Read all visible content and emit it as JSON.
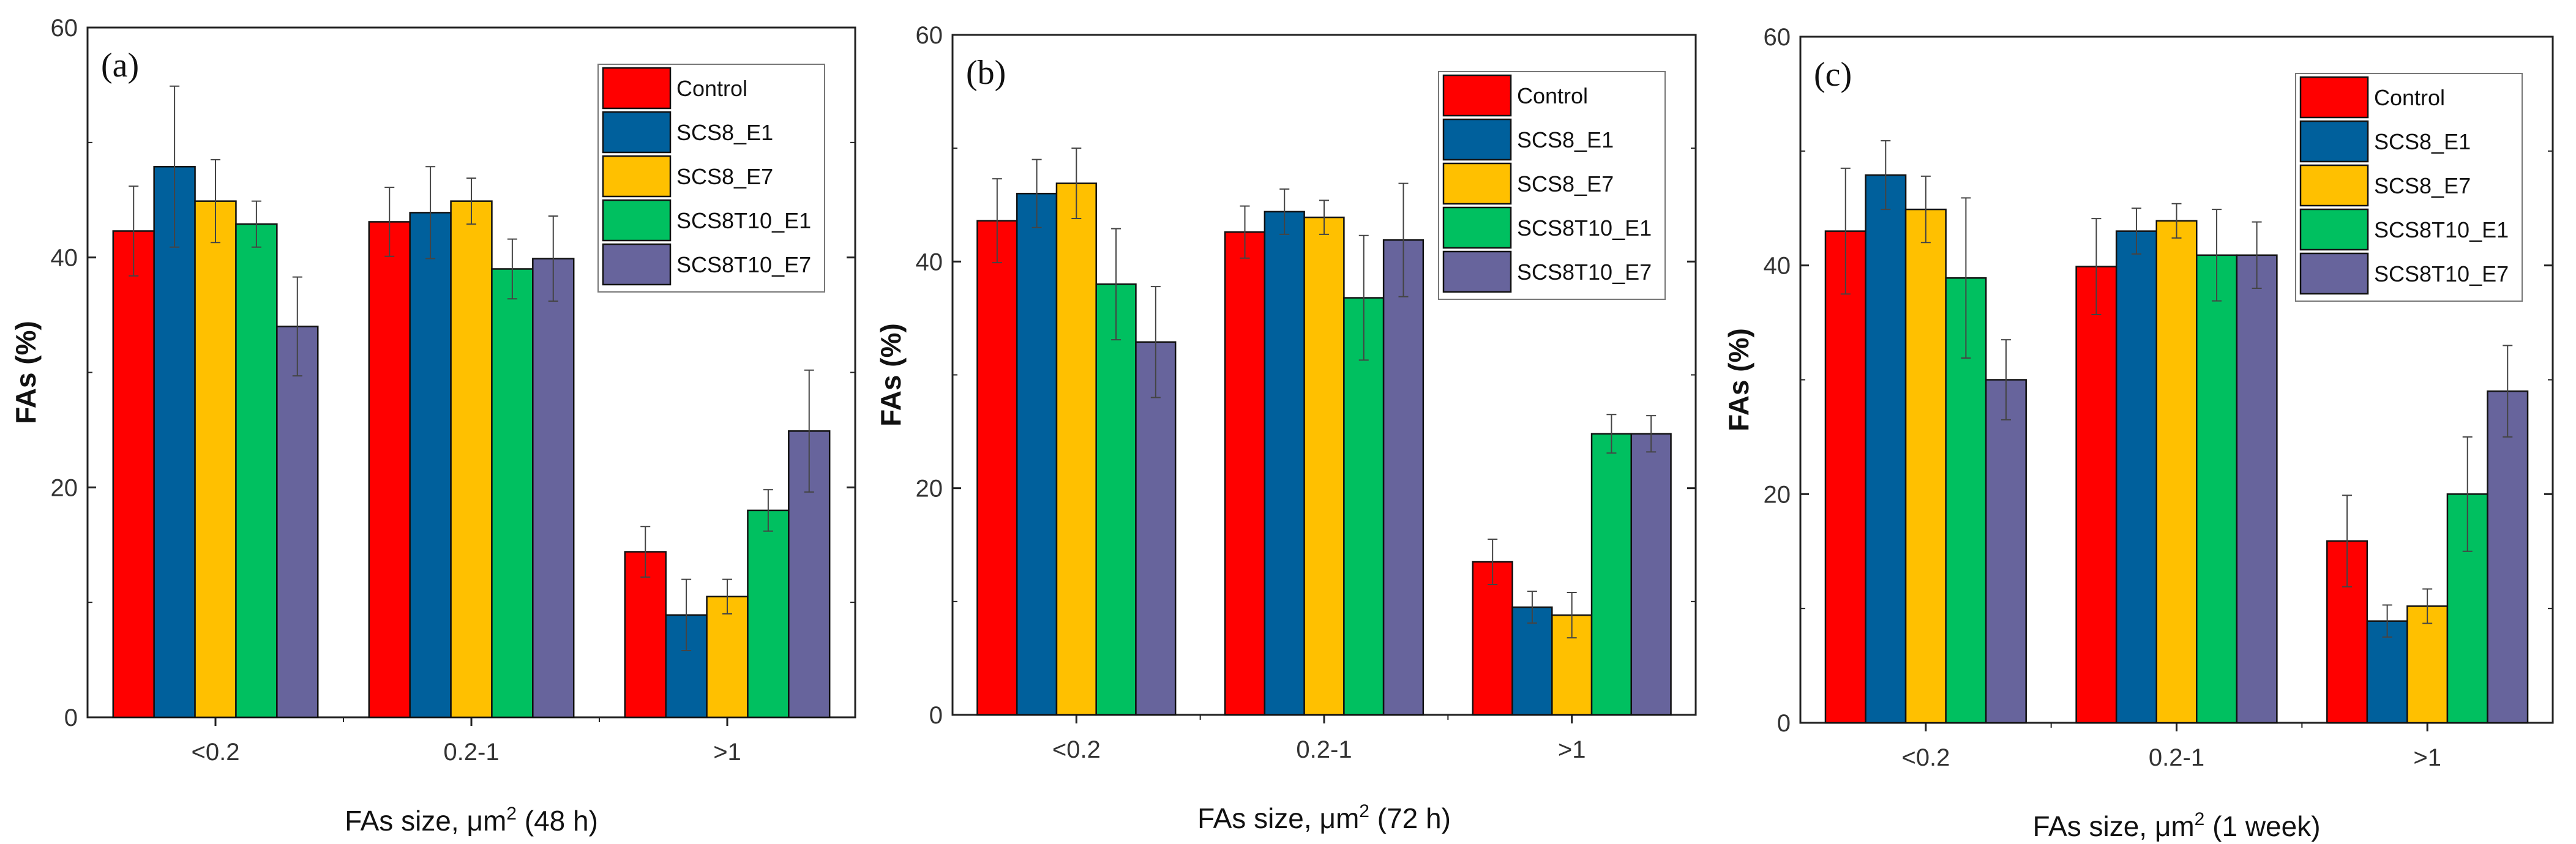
{
  "chart_data": [
    {
      "type": "bar",
      "panel_label": "(a)",
      "xlabel_prefix": "FAs size, μm",
      "xlabel_sup": "2",
      "xlabel_suffix": " (48 h)",
      "ylabel": "FAs (%)",
      "ylim": [
        0,
        60
      ],
      "yticks": [
        "0",
        "20",
        "40",
        "60"
      ],
      "categories": [
        "<0.2",
        "0.2-1",
        ">1"
      ],
      "legend_position": "top-right",
      "series": [
        {
          "name": "Control",
          "color": "#ff0000",
          "values": [
            42.3,
            43.1,
            14.4
          ],
          "errors": [
            3.9,
            3.0,
            2.2
          ]
        },
        {
          "name": "SCS8_E1",
          "color": "#00609c",
          "values": [
            47.9,
            43.9,
            8.9
          ],
          "errors": [
            7.0,
            4.0,
            3.1
          ]
        },
        {
          "name": "SCS8_E7",
          "color": "#ffc000",
          "values": [
            44.9,
            44.9,
            10.5
          ],
          "errors": [
            3.6,
            2.0,
            1.5
          ]
        },
        {
          "name": "SCS8T10_E1",
          "color": "#00c060",
          "values": [
            42.9,
            39.0,
            18.0
          ],
          "errors": [
            2.0,
            2.6,
            1.8
          ]
        },
        {
          "name": "SCS8T10_E7",
          "color": "#67649c",
          "values": [
            34.0,
            39.9,
            24.9
          ],
          "errors": [
            4.3,
            3.7,
            5.3
          ]
        }
      ]
    },
    {
      "type": "bar",
      "panel_label": "(b)",
      "xlabel_prefix": "FAs size, μm",
      "xlabel_sup": "2",
      "xlabel_suffix": " (72 h)",
      "ylabel": "FAs (%)",
      "ylim": [
        0,
        60
      ],
      "yticks": [
        "0",
        "20",
        "40",
        "60"
      ],
      "categories": [
        "<0.2",
        "0.2-1",
        ">1"
      ],
      "legend_position": "top-right",
      "series": [
        {
          "name": "Control",
          "color": "#ff0000",
          "values": [
            43.6,
            42.6,
            13.5
          ],
          "errors": [
            3.7,
            2.3,
            2.0
          ]
        },
        {
          "name": "SCS8_E1",
          "color": "#00609c",
          "values": [
            46.0,
            44.4,
            9.5
          ],
          "errors": [
            3.0,
            2.0,
            1.4
          ]
        },
        {
          "name": "SCS8_E7",
          "color": "#ffc000",
          "values": [
            46.9,
            43.9,
            8.8
          ],
          "errors": [
            3.1,
            1.5,
            2.0
          ]
        },
        {
          "name": "SCS8T10_E1",
          "color": "#00c060",
          "values": [
            38.0,
            36.8,
            24.8
          ],
          "errors": [
            4.9,
            5.5,
            1.7
          ]
        },
        {
          "name": "SCS8T10_E7",
          "color": "#67649c",
          "values": [
            32.9,
            41.9,
            24.8
          ],
          "errors": [
            4.9,
            5.0,
            1.6
          ]
        }
      ]
    },
    {
      "type": "bar",
      "panel_label": "(c)",
      "xlabel_prefix": "FAs size, μm",
      "xlabel_sup": "2",
      "xlabel_suffix": " (1 week)",
      "ylabel": "FAs (%)",
      "ylim": [
        0,
        60
      ],
      "yticks": [
        "0",
        "20",
        "40",
        "60"
      ],
      "categories": [
        "<0.2",
        "0.2-1",
        ">1"
      ],
      "legend_position": "top-right",
      "series": [
        {
          "name": "Control",
          "color": "#ff0000",
          "values": [
            43.0,
            39.9,
            15.9
          ],
          "errors": [
            5.5,
            4.2,
            4.0
          ]
        },
        {
          "name": "SCS8_E1",
          "color": "#00609c",
          "values": [
            47.9,
            43.0,
            8.9
          ],
          "errors": [
            3.0,
            2.0,
            1.4
          ]
        },
        {
          "name": "SCS8_E7",
          "color": "#ffc000",
          "values": [
            44.9,
            43.9,
            10.2
          ],
          "errors": [
            2.9,
            1.5,
            1.5
          ]
        },
        {
          "name": "SCS8T10_E1",
          "color": "#00c060",
          "values": [
            38.9,
            40.9,
            20.0
          ],
          "errors": [
            7.0,
            4.0,
            5.0
          ]
        },
        {
          "name": "SCS8T10_E7",
          "color": "#67649c",
          "values": [
            30.0,
            40.9,
            29.0
          ],
          "errors": [
            3.5,
            2.9,
            4.0
          ]
        }
      ]
    }
  ]
}
